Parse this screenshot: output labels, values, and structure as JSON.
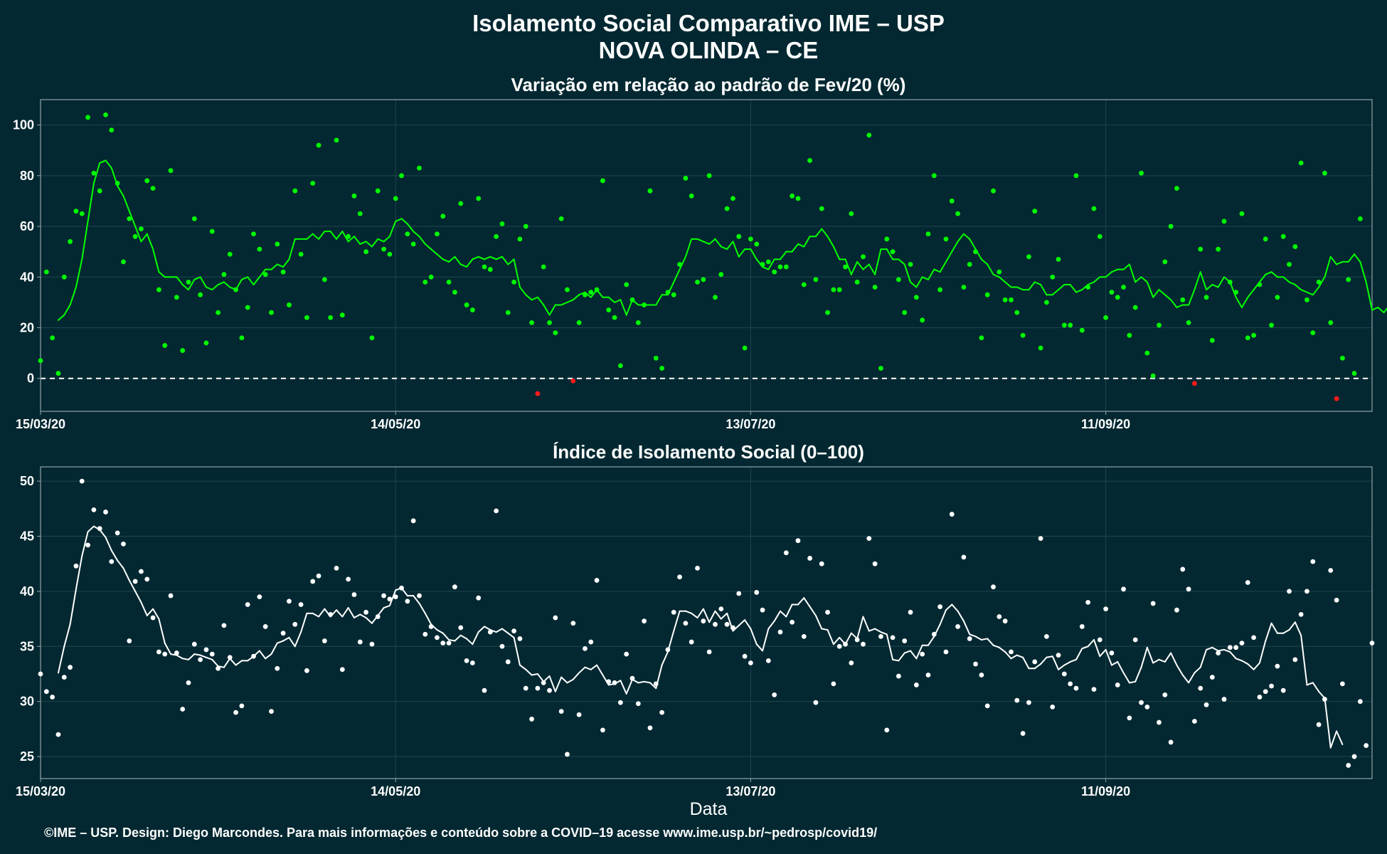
{
  "header": {
    "title_line1": "Isolamento Social Comparativo IME – USP",
    "title_line2": "NOVA OLINDA – CE"
  },
  "footer": {
    "xlabel": "Data",
    "credit": "©IME – USP. Design: Diego Marcondes. Para mais informações e conteúdo sobre a COVID–19 acesse www.ime.usp.br/~pedrosp/covid19/"
  },
  "colors": {
    "background": "#032831",
    "panel_border": "#8fa3a8",
    "gridline": "#1f4550",
    "positive": "#00ff00",
    "negative": "#ff1a1a",
    "index_points": "#ffffff"
  },
  "chart_data": [
    {
      "type": "scatter",
      "title": "Variação em relação ao padrão de Fev/20 (%)",
      "xlabel": "",
      "ylabel": "",
      "start_date": "2020-03-15",
      "x_ticks": [
        {
          "label": "15/03/20",
          "day": 0
        },
        {
          "label": "14/05/20",
          "day": 60
        },
        {
          "label": "13/07/20",
          "day": 120
        },
        {
          "label": "11/09/20",
          "day": 180
        }
      ],
      "xlim": [
        0,
        225
      ],
      "ylim": [
        -13,
        110
      ],
      "y_ticks": [
        0,
        20,
        40,
        60,
        80,
        100
      ],
      "reference_line": 0,
      "grid": true,
      "series": [
        {
          "kind": "points",
          "values": [
            7,
            42,
            16,
            2,
            40,
            54,
            66,
            65,
            103,
            81,
            74,
            104,
            98,
            77,
            46,
            63,
            56,
            59,
            78,
            75,
            35,
            13,
            82,
            32,
            11,
            38,
            63,
            33,
            14,
            58,
            26,
            41,
            49,
            35,
            16,
            28,
            57,
            51,
            41,
            26,
            53,
            42,
            29,
            74,
            49,
            24,
            77,
            92,
            39,
            24,
            94,
            25,
            56,
            72,
            65,
            50,
            16,
            74,
            51,
            49,
            71,
            80,
            57,
            53,
            83,
            38,
            40,
            57,
            64,
            38,
            34,
            69,
            29,
            27,
            71,
            44,
            43,
            56,
            61,
            26,
            38,
            55,
            60,
            22,
            -6,
            44,
            22,
            18,
            63,
            35,
            -1,
            22,
            33,
            34,
            35,
            78,
            27,
            24,
            5,
            37,
            31,
            22,
            29,
            74,
            8,
            4,
            34,
            33,
            45,
            79,
            72,
            38,
            39,
            80,
            32,
            41,
            67,
            71,
            56,
            12,
            55,
            53,
            45,
            46,
            42,
            44,
            44,
            72,
            71,
            37,
            86,
            39,
            67,
            26,
            35,
            35,
            44,
            65,
            38,
            48,
            96,
            36,
            4,
            55,
            50,
            39,
            26,
            45,
            32,
            23,
            57,
            80,
            35,
            55,
            70,
            65,
            36,
            45,
            50,
            16,
            33,
            74,
            42,
            31,
            31,
            26,
            17,
            48,
            66,
            12,
            30,
            40,
            47,
            21,
            21,
            80,
            19,
            36,
            67,
            56,
            24,
            34,
            32,
            36,
            17,
            28,
            81,
            10,
            1,
            21,
            46,
            60,
            75,
            31,
            22,
            -2,
            51,
            32,
            15,
            51,
            62,
            38,
            34,
            65,
            16,
            17,
            37,
            55,
            21,
            32,
            56,
            45,
            52,
            85,
            31,
            18,
            38,
            81,
            22,
            -8,
            8,
            39,
            2,
            63
          ]
        },
        {
          "kind": "moving_average",
          "values": [
            null,
            null,
            null,
            23,
            25,
            29,
            36,
            47,
            62,
            77,
            85,
            86,
            83,
            76,
            72,
            66,
            60,
            54,
            57,
            51,
            42,
            40,
            40,
            40,
            37,
            35,
            39,
            40,
            36,
            35,
            37,
            38,
            36,
            35,
            39,
            40,
            37,
            40,
            43,
            43,
            45,
            44,
            47,
            55,
            55,
            55,
            57,
            55,
            58,
            58,
            55,
            58,
            54,
            56,
            53,
            54,
            52,
            55,
            54,
            56,
            62,
            63,
            61,
            58,
            56,
            53,
            51,
            49,
            47,
            46,
            48,
            45,
            44,
            47,
            48,
            47,
            48,
            47,
            48,
            45,
            47,
            36,
            33,
            31,
            32,
            29,
            25,
            29,
            29,
            30,
            31,
            33,
            34,
            32,
            35,
            32,
            32,
            30,
            31,
            25,
            31,
            29,
            29,
            29,
            29,
            33,
            33,
            38,
            43,
            48,
            55,
            55,
            54,
            53,
            55,
            52,
            51,
            54,
            48,
            51,
            51,
            47,
            44,
            43,
            47,
            47,
            50,
            50,
            53,
            52,
            56,
            56,
            59,
            56,
            52,
            47,
            47,
            41,
            46,
            43,
            45,
            41,
            51,
            51,
            47,
            47,
            45,
            38,
            36,
            40,
            39,
            43,
            42,
            46,
            50,
            54,
            57,
            55,
            51,
            47,
            45,
            41,
            40,
            38,
            36,
            36,
            35,
            35,
            38,
            37,
            33,
            33,
            35,
            37,
            37,
            34,
            35,
            37,
            38,
            40,
            40,
            42,
            43,
            43,
            45,
            38,
            40,
            38,
            32,
            35,
            33,
            31,
            28,
            29,
            29,
            35,
            42,
            35,
            37,
            36,
            40,
            38,
            32,
            28,
            32,
            35,
            38,
            41,
            42,
            40,
            40,
            38,
            37,
            35,
            34,
            33,
            36,
            40,
            48,
            45,
            46,
            46,
            49,
            46,
            38,
            27,
            28,
            26,
            29,
            null
          ]
        }
      ]
    },
    {
      "type": "scatter",
      "title": "Índice de Isolamento Social (0–100)",
      "xlabel": "Data",
      "ylabel": "",
      "start_date": "2020-03-15",
      "x_ticks": [
        {
          "label": "15/03/20",
          "day": 0
        },
        {
          "label": "14/05/20",
          "day": 60
        },
        {
          "label": "13/07/20",
          "day": 120
        },
        {
          "label": "11/09/20",
          "day": 180
        }
      ],
      "xlim": [
        0,
        225
      ],
      "ylim": [
        23.0,
        51.3
      ],
      "y_ticks": [
        25,
        30,
        35,
        40,
        45,
        50
      ],
      "grid": true,
      "series": [
        {
          "kind": "points",
          "values": [
            32.5,
            30.9,
            30.4,
            27.0,
            32.2,
            33.1,
            42.3,
            50.0,
            44.2,
            47.4,
            45.7,
            47.2,
            42.7,
            45.3,
            44.3,
            35.5,
            40.9,
            41.8,
            41.1,
            37.6,
            34.5,
            34.3,
            39.6,
            34.4,
            29.3,
            31.7,
            35.2,
            33.8,
            34.7,
            34.3,
            33.0,
            36.9,
            34.0,
            29.0,
            29.6,
            38.8,
            34.1,
            39.5,
            36.8,
            29.1,
            33.0,
            36.2,
            39.1,
            37.0,
            38.8,
            32.8,
            40.9,
            41.4,
            35.5,
            37.9,
            42.1,
            32.9,
            41.1,
            39.7,
            35.4,
            38.1,
            35.2,
            37.7,
            39.6,
            39.3,
            39.5,
            40.3,
            39.1,
            46.4,
            39.6,
            36.1,
            36.8,
            35.8,
            35.3,
            35.3,
            40.4,
            36.7,
            33.7,
            33.5,
            39.4,
            31.0,
            36.3,
            47.3,
            35.0,
            33.6,
            36.4,
            35.7,
            31.2,
            28.4,
            31.2,
            31.7,
            31.0,
            37.6,
            29.1,
            25.2,
            37.1,
            28.8,
            34.8,
            35.4,
            41.0,
            27.4,
            31.8,
            31.7,
            29.9,
            34.3,
            32.1,
            29.8,
            37.3,
            27.6,
            31.6,
            29.0,
            34.7,
            38.1,
            41.3,
            37.1,
            35.4,
            42.1,
            37.3,
            34.5,
            37.0,
            38.4,
            37.0,
            36.7,
            39.8,
            34.1,
            33.5,
            39.9,
            38.3,
            33.7,
            30.6,
            36.3,
            43.5,
            37.2,
            44.6,
            35.9,
            43.0,
            29.9,
            42.5,
            38.1,
            31.6,
            35.0,
            35.2,
            33.5,
            35.6,
            35.2,
            44.8,
            42.5,
            35.9,
            27.4,
            35.8,
            32.3,
            35.5,
            38.1,
            31.5,
            34.3,
            32.4,
            36.1,
            38.6,
            34.5,
            47.0,
            36.8,
            43.1,
            35.7,
            33.4,
            32.4,
            29.6,
            40.4,
            37.7,
            37.3,
            34.5,
            30.1,
            27.1,
            29.9,
            33.6,
            44.8,
            35.9,
            29.5,
            34.2,
            32.5,
            31.6,
            31.2,
            36.8,
            39.0,
            31.1,
            35.6,
            38.4,
            34.4,
            31.5,
            40.2,
            28.5,
            35.6,
            29.9,
            29.5,
            38.9,
            28.1,
            30.6,
            26.3,
            38.3,
            42.0,
            40.2,
            28.2,
            31.2,
            29.7,
            32.2,
            34.4,
            30.2,
            34.9,
            34.9,
            35.3,
            40.8,
            35.8,
            30.4,
            30.9,
            31.4,
            33.2,
            31.0,
            40.0,
            33.8,
            37.9,
            40.0,
            42.7,
            27.9,
            30.2,
            41.9,
            39.2,
            31.6,
            24.2,
            25.0,
            30.0,
            26.0,
            35.3
          ]
        },
        {
          "kind": "moving_average",
          "values": [
            null,
            null,
            null,
            32.6,
            35.0,
            37.0,
            40.2,
            43.2,
            45.4,
            45.9,
            45.6,
            44.9,
            43.7,
            42.8,
            42.1,
            41.0,
            40.0,
            39.0,
            37.8,
            38.4,
            37.5,
            35.3,
            34.3,
            34.2,
            33.9,
            33.8,
            34.3,
            34.2,
            34.0,
            33.8,
            33.2,
            33.1,
            33.9,
            33.3,
            33.7,
            33.7,
            34.1,
            34.6,
            33.9,
            34.3,
            35.3,
            35.5,
            35.8,
            35.0,
            36.3,
            38.0,
            38.0,
            37.7,
            38.4,
            37.7,
            38.3,
            37.7,
            38.5,
            37.6,
            37.9,
            37.6,
            37.1,
            37.8,
            38.5,
            38.7,
            40.1,
            40.3,
            39.6,
            39.6,
            38.9,
            38.0,
            37.0,
            36.5,
            36.2,
            35.6,
            35.5,
            36.0,
            35.7,
            35.2,
            36.3,
            36.8,
            36.5,
            36.3,
            36.6,
            36.2,
            35.8,
            33.3,
            32.9,
            32.4,
            32.5,
            31.8,
            32.3,
            30.9,
            32.2,
            31.7,
            32.0,
            32.6,
            33.1,
            32.9,
            33.3,
            32.4,
            31.5,
            31.6,
            31.9,
            30.7,
            32.0,
            31.7,
            31.8,
            31.7,
            31.2,
            33.3,
            34.5,
            36.4,
            38.2,
            38.2,
            38.0,
            37.6,
            38.4,
            37.2,
            38.2,
            37.5,
            38.0,
            36.4,
            36.9,
            37.4,
            36.6,
            35.2,
            34.6,
            36.6,
            37.3,
            38.2,
            37.7,
            38.8,
            38.8,
            39.4,
            38.6,
            37.8,
            36.6,
            36.5,
            35.2,
            35.8,
            35.2,
            36.2,
            35.7,
            37.7,
            36.4,
            36.6,
            36.3,
            36.1,
            33.8,
            33.7,
            34.4,
            34.6,
            33.9,
            35.1,
            35.1,
            35.9,
            37.0,
            38.3,
            38.8,
            38.2,
            37.3,
            36.1,
            35.9,
            35.6,
            35.7,
            35.1,
            34.9,
            34.5,
            33.9,
            34.2,
            34.0,
            33.0,
            33.0,
            33.4,
            34.0,
            34.1,
            32.9,
            33.3,
            33.6,
            33.8,
            34.8,
            35.0,
            35.6,
            34.1,
            34.7,
            33.3,
            33.6,
            32.6,
            31.7,
            31.8,
            33.1,
            34.9,
            33.5,
            33.8,
            33.6,
            34.4,
            33.3,
            32.4,
            31.7,
            32.6,
            33.1,
            34.7,
            34.9,
            34.6,
            34.7,
            34.5,
            33.9,
            33.7,
            33.4,
            32.9,
            33.5,
            35.5,
            37.1,
            36.2,
            36.2,
            36.5,
            37.2,
            36.0,
            31.5,
            31.7,
            30.9,
            30.3,
            25.8,
            27.3,
            26.1
          ]
        }
      ]
    }
  ]
}
